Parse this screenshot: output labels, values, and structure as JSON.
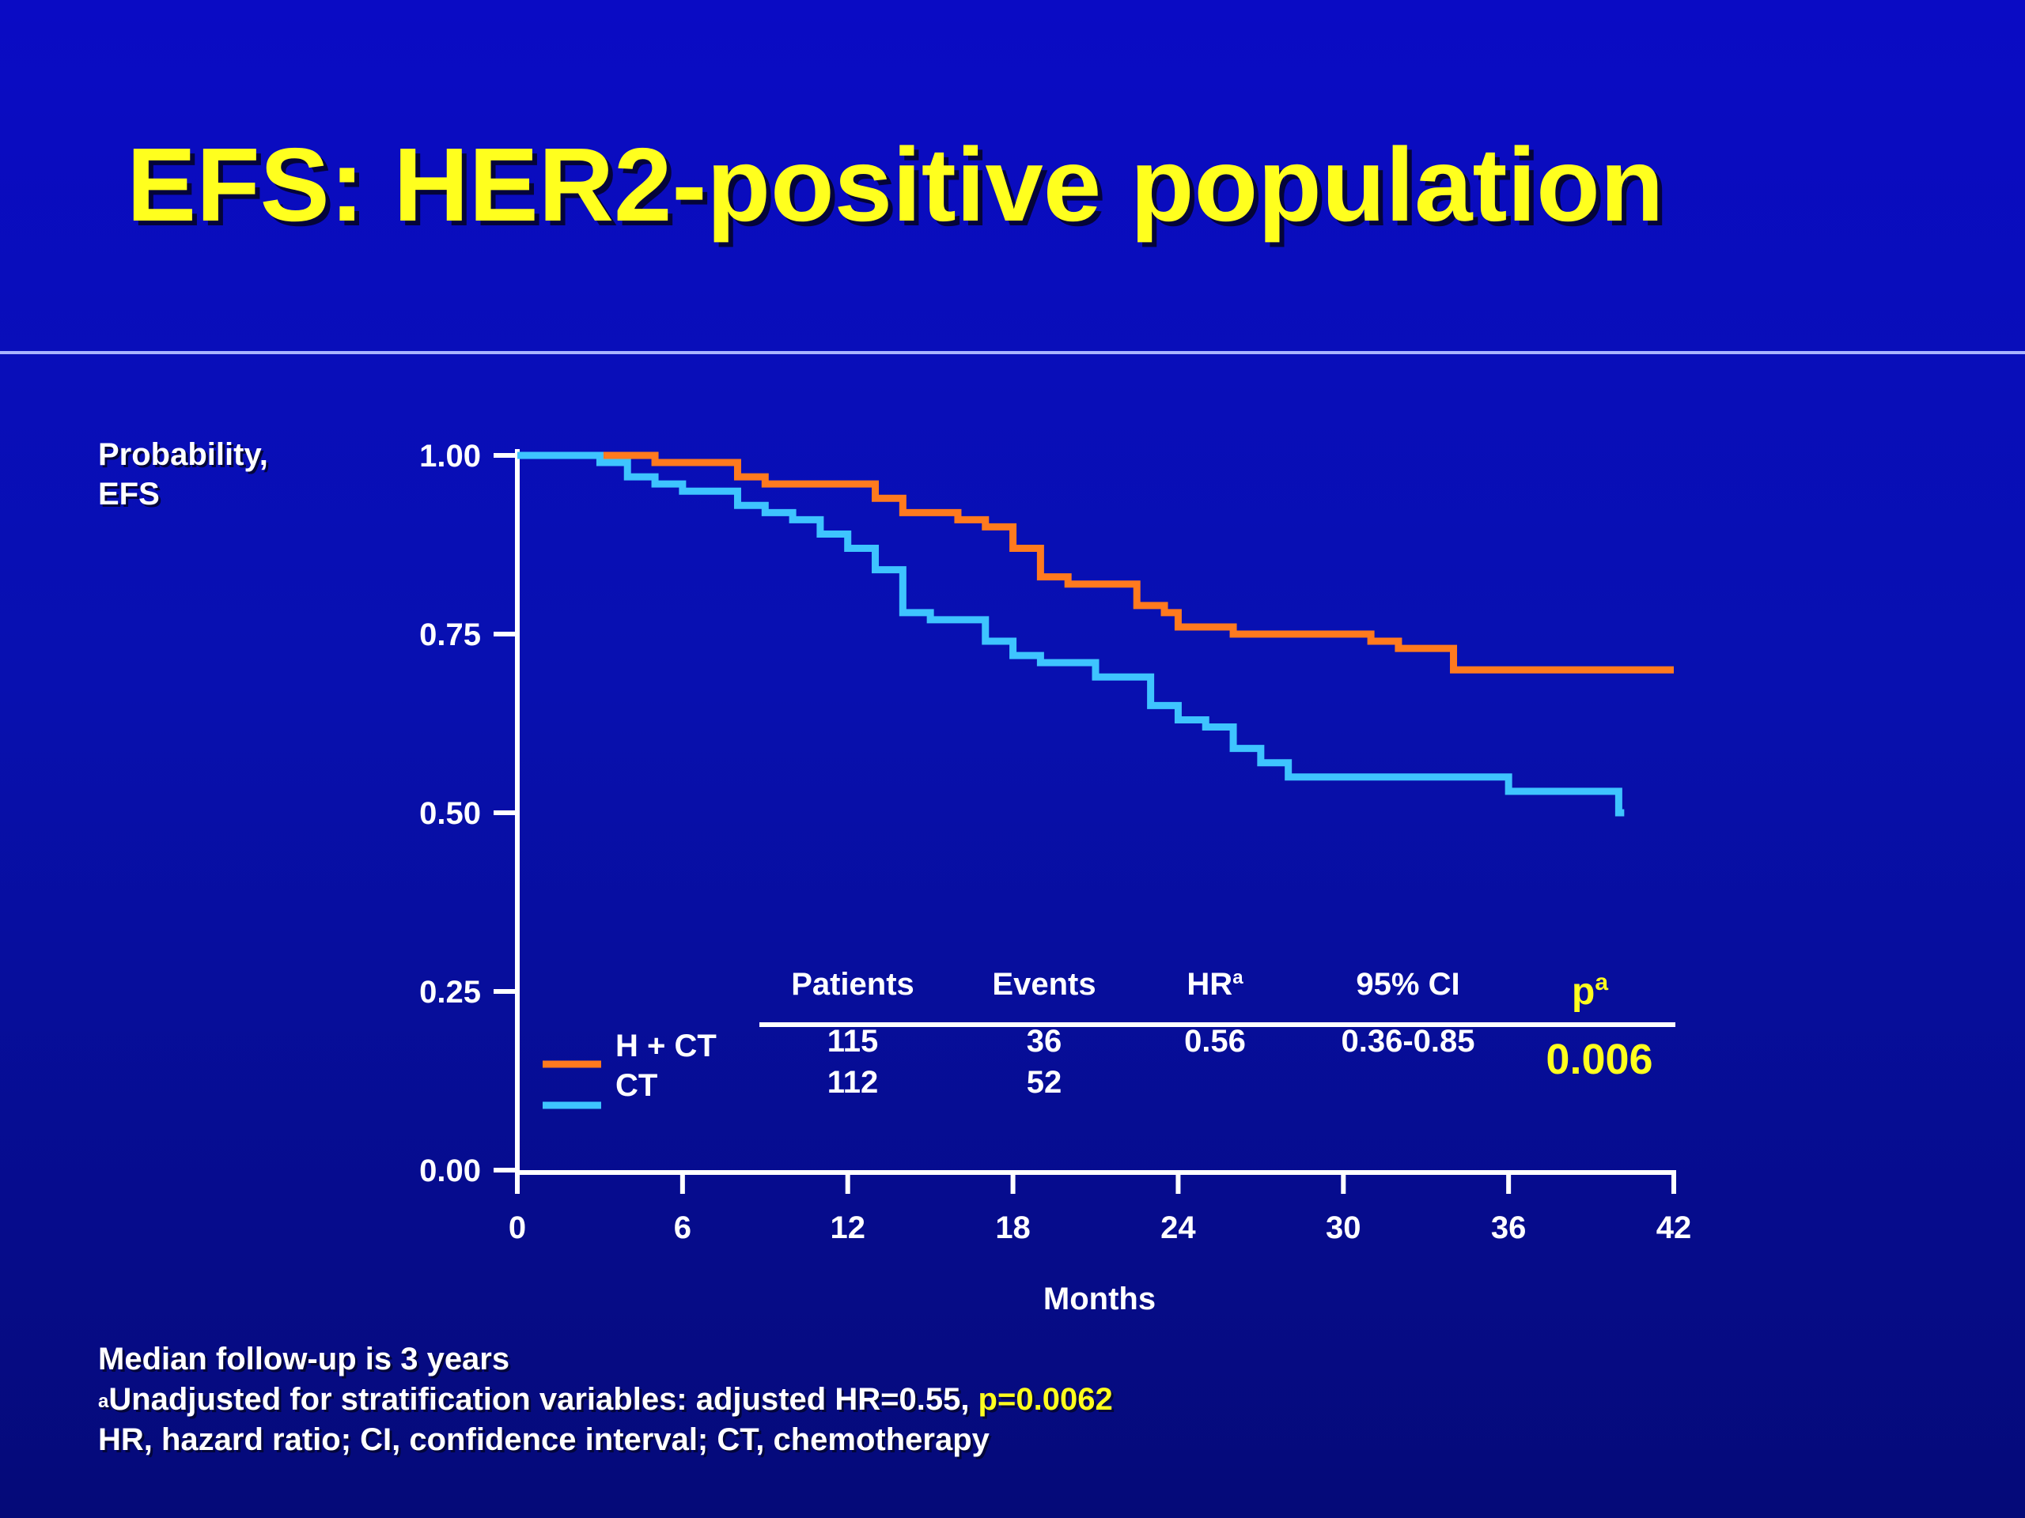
{
  "title": "EFS: HER2-positive population",
  "footnotes": {
    "line1": "Median follow-up is 3 years",
    "line2_sup": "a",
    "line2_text": "Unadjusted for stratification variables: adjusted HR=0.55, ",
    "line2_highlight": "p=0.0062",
    "line3": "HR, hazard ratio; CI, confidence interval; CT, chemotherapy"
  },
  "colors": {
    "title": "#ffff1e",
    "h_ct": "#ff7a1e",
    "ct": "#3ec4ff",
    "highlight": "#ffff1e"
  },
  "chart_data": {
    "type": "line",
    "step": true,
    "ylabel_lines": [
      "Probability,",
      "EFS"
    ],
    "xlabel": "Months",
    "xlim": [
      0,
      42
    ],
    "ylim": [
      0,
      1
    ],
    "x_ticks": [
      0,
      6,
      12,
      18,
      24,
      30,
      36,
      42
    ],
    "y_ticks": [
      0,
      0.25,
      0.5,
      0.75,
      1
    ],
    "y_tick_labels": [
      "0.00",
      "0.25",
      "0.50",
      "0.75",
      "1.00"
    ],
    "series": [
      {
        "name": "H + CT",
        "color": "#ff7a1e",
        "x": [
          0,
          3,
          5,
          8,
          9,
          13,
          14,
          16,
          17,
          18,
          19,
          20,
          21,
          22.5,
          23.5,
          24,
          26,
          28,
          31,
          32,
          34,
          42
        ],
        "y": [
          1.0,
          1.0,
          0.99,
          0.97,
          0.96,
          0.94,
          0.92,
          0.91,
          0.9,
          0.87,
          0.83,
          0.82,
          0.82,
          0.79,
          0.78,
          0.76,
          0.75,
          0.75,
          0.74,
          0.73,
          0.7,
          0.7
        ]
      },
      {
        "name": "CT",
        "color": "#3ec4ff",
        "x": [
          0,
          3,
          4,
          5,
          6,
          8,
          9,
          10,
          11,
          12,
          13,
          14,
          15,
          17,
          18,
          19,
          21,
          23,
          24,
          25,
          26,
          27,
          28,
          30,
          33,
          36,
          38,
          40,
          40.2
        ],
        "y": [
          1.0,
          0.99,
          0.97,
          0.96,
          0.95,
          0.93,
          0.92,
          0.91,
          0.89,
          0.87,
          0.84,
          0.78,
          0.77,
          0.74,
          0.72,
          0.71,
          0.69,
          0.65,
          0.63,
          0.62,
          0.59,
          0.57,
          0.55,
          0.55,
          0.55,
          0.53,
          0.53,
          0.5,
          0.5
        ]
      }
    ],
    "legend": [
      "H + CT",
      "CT"
    ],
    "table": {
      "headers": [
        "Patients",
        "Events",
        "HR",
        "95% CI",
        "p"
      ],
      "header_sup": [
        "",
        "",
        "a",
        "",
        "a"
      ],
      "rows": [
        [
          "115",
          "36",
          "0.56",
          "0.36-0.85"
        ],
        [
          "112",
          "52",
          "",
          ""
        ]
      ],
      "p_value": "0.006"
    }
  }
}
